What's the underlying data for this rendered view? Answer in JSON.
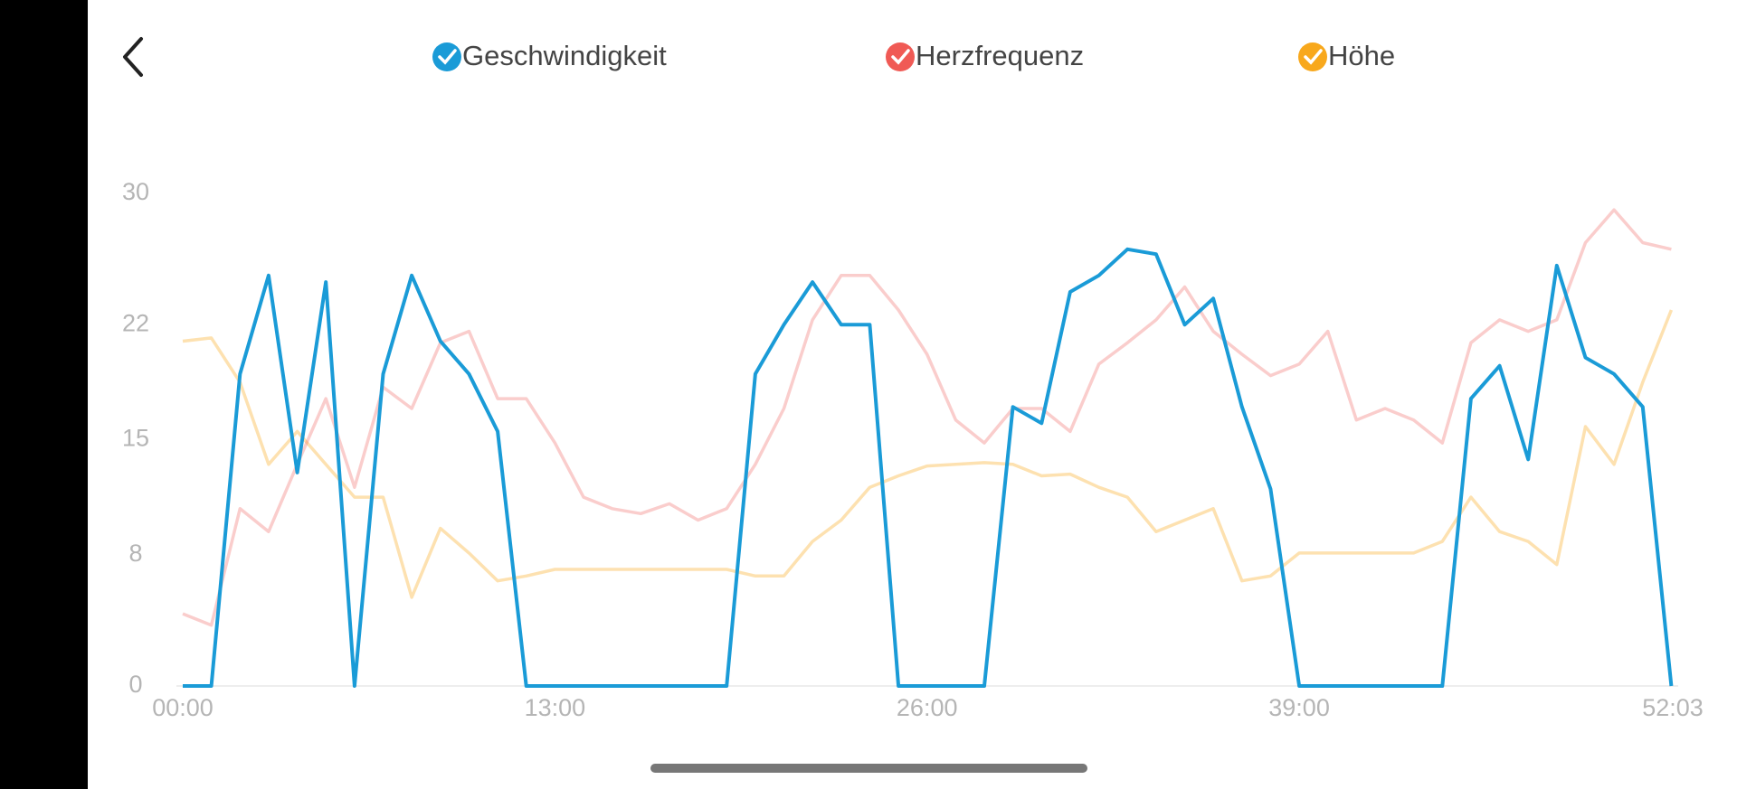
{
  "chart_data": {
    "type": "line",
    "x": [
      0,
      1,
      2,
      3,
      4,
      5,
      6,
      7,
      8,
      9,
      10,
      11,
      12,
      13,
      14,
      15,
      16,
      17,
      18,
      19,
      20,
      21,
      22,
      23,
      24,
      25,
      26,
      27,
      28,
      29,
      30,
      31,
      32,
      33,
      34,
      35,
      36,
      37,
      38,
      39,
      40,
      41,
      42,
      43,
      44,
      45,
      46,
      47,
      48,
      49,
      50,
      51,
      52
    ],
    "xlim": [
      0,
      52.05
    ],
    "xticks": [
      {
        "value": 0,
        "label": "00:00"
      },
      {
        "value": 13,
        "label": "13:00"
      },
      {
        "value": 26,
        "label": "26:00"
      },
      {
        "value": 39,
        "label": "39:00"
      },
      {
        "value": 52.05,
        "label": "52:03"
      }
    ],
    "ylim": [
      0,
      30
    ],
    "yticks": [
      0,
      8,
      15,
      22,
      30
    ],
    "grid": false,
    "series": [
      {
        "name": "Geschwindigkeit",
        "color": "#1a9bd7",
        "values": [
          0,
          0,
          19,
          25,
          13,
          24.6,
          0,
          19,
          25,
          21,
          19,
          15.5,
          0,
          0,
          0,
          0,
          0,
          0,
          0,
          0,
          19,
          22,
          24.6,
          22,
          22,
          0,
          0,
          0,
          0,
          17,
          16,
          24,
          25,
          26.6,
          26.3,
          22,
          23.6,
          17,
          12,
          0,
          0,
          0,
          0,
          0,
          0,
          17.5,
          19.5,
          13.8,
          25.6,
          20,
          19,
          17,
          0
        ]
      },
      {
        "name": "Herzfrequenz",
        "color": "#f05a55",
        "values": [
          4.4,
          3.7,
          10.8,
          9.4,
          13.5,
          17.5,
          12.1,
          18.2,
          16.9,
          20.9,
          21.6,
          17.5,
          17.5,
          14.8,
          11.5,
          10.8,
          10.5,
          11.1,
          10.1,
          10.8,
          13.5,
          16.9,
          22.3,
          25,
          25,
          22.9,
          20.2,
          16.2,
          14.8,
          16.9,
          16.9,
          15.5,
          19.6,
          20.9,
          22.3,
          24.3,
          21.6,
          20.2,
          18.9,
          19.6,
          21.6,
          16.2,
          16.9,
          16.2,
          14.8,
          20.9,
          22.3,
          21.6,
          22.3,
          27,
          29,
          27,
          26.6
        ]
      },
      {
        "name": "Höhe",
        "color": "#f8a81c",
        "values": [
          21,
          21.2,
          18.5,
          13.5,
          15.5,
          13.5,
          11.5,
          11.5,
          5.4,
          9.6,
          8.1,
          6.4,
          6.7,
          7.1,
          7.1,
          7.1,
          7.1,
          7.1,
          7.1,
          7.1,
          6.7,
          6.7,
          8.8,
          10.1,
          12.1,
          12.8,
          13.4,
          13.5,
          13.6,
          13.5,
          12.8,
          12.9,
          12.1,
          11.5,
          9.4,
          10.1,
          10.8,
          6.4,
          6.7,
          8.1,
          8.1,
          8.1,
          8.1,
          8.1,
          8.8,
          11.5,
          9.4,
          8.8,
          7.4,
          15.8,
          13.5,
          18.5,
          22.9
        ]
      }
    ]
  }
}
